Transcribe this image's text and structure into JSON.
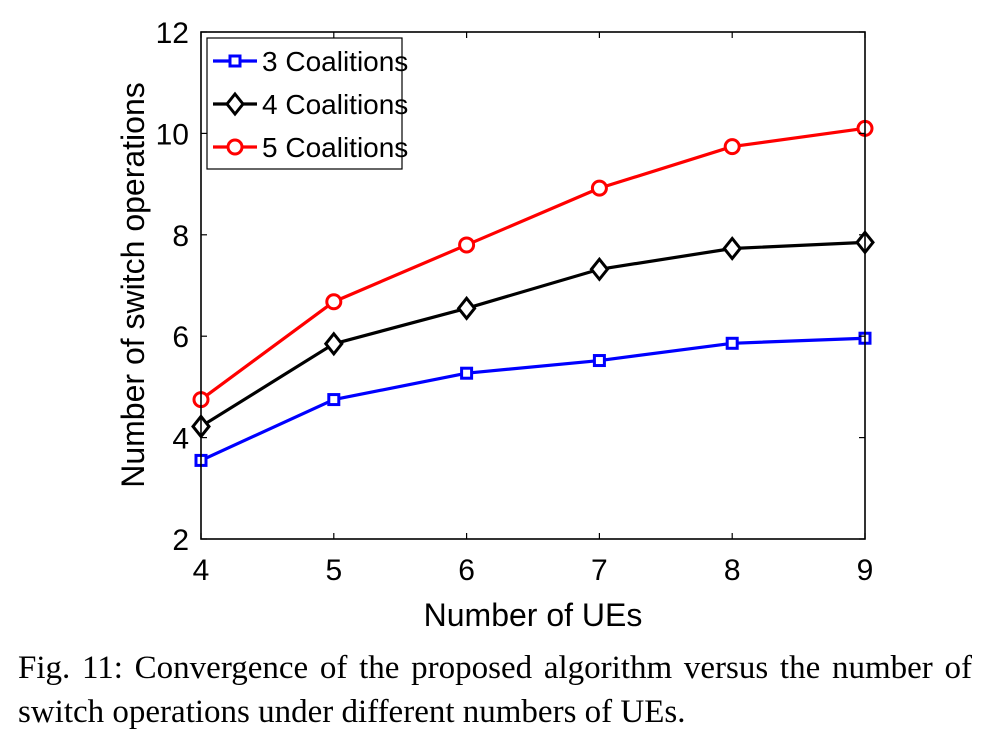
{
  "caption": "Fig. 11: Convergence of the proposed algorithm versus the number of switch operations under different numbers of UEs.",
  "chart_data": {
    "type": "line",
    "xlabel": "Number of UEs",
    "ylabel": "Number of switch operations",
    "x": [
      4,
      5,
      6,
      7,
      8,
      9
    ],
    "xlim": [
      4,
      9
    ],
    "ylim": [
      2,
      12
    ],
    "xticks": [
      "4",
      "5",
      "6",
      "7",
      "8",
      "9"
    ],
    "yticks": [
      "2",
      "4",
      "6",
      "8",
      "10",
      "12"
    ],
    "grid": false,
    "legend_position": "top-left",
    "series": [
      {
        "name": "3 Coalitions",
        "color": "#0000ff",
        "marker": "square",
        "values": [
          3.55,
          4.75,
          5.27,
          5.52,
          5.86,
          5.96
        ]
      },
      {
        "name": "4 Coalitions",
        "color": "#000000",
        "marker": "diamond",
        "values": [
          4.22,
          5.85,
          6.55,
          7.32,
          7.73,
          7.85
        ]
      },
      {
        "name": "5 Coalitions",
        "color": "#ff0000",
        "marker": "circle",
        "values": [
          4.75,
          6.68,
          7.8,
          8.92,
          9.74,
          10.1
        ]
      }
    ]
  }
}
